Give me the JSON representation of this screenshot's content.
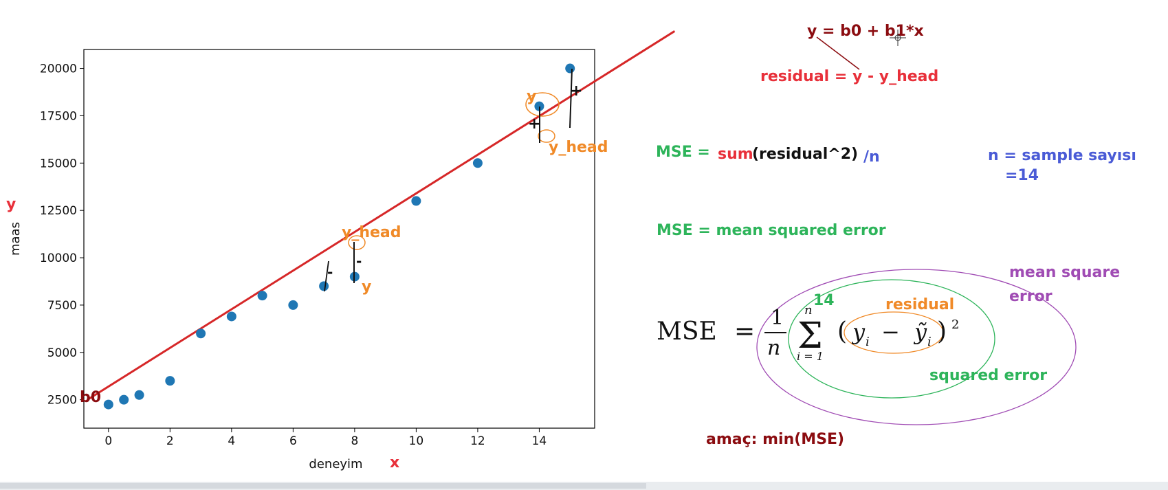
{
  "chart_data": {
    "type": "scatter",
    "x": [
      0,
      0.5,
      1,
      2,
      3,
      4,
      5,
      6,
      7,
      8,
      10,
      12,
      14,
      15
    ],
    "y": [
      2250,
      2500,
      2750,
      3500,
      6000,
      6900,
      8000,
      7500,
      8500,
      9000,
      13000,
      15000,
      18000,
      20000
    ],
    "fit_line": {
      "intercept": 3200,
      "slope": 1020,
      "color": "#d62728"
    },
    "point_color": "#1f77b4",
    "xlabel": "deneyim",
    "ylabel": "maas",
    "xlim": [
      -0.8,
      15.8
    ],
    "ylim": [
      1000,
      21000
    ],
    "xticks": [
      0,
      2,
      4,
      6,
      8,
      10,
      12,
      14
    ],
    "yticks": [
      2500,
      5000,
      7500,
      10000,
      12500,
      15000,
      17500,
      20000
    ],
    "xtick_labels": [
      "0",
      "2",
      "4",
      "6",
      "8",
      "10",
      "12",
      "14"
    ],
    "ytick_labels": [
      "2500",
      "5000",
      "7500",
      "10000",
      "12500",
      "15000",
      "17500",
      "20000"
    ],
    "grid": false
  },
  "annotations": {
    "axis_y_letter": "y",
    "axis_x_letter": "x",
    "b0": "b0",
    "y_label_1": "y",
    "y_label_2": "y",
    "y_head_1": "y_head",
    "y_head_2": "y_head",
    "plus": "+",
    "minus": "-",
    "equation": "y = b0 + b1*x",
    "residual_def": "residual = y - y_head",
    "mse_label": "MSE =",
    "mse_sum": "sum",
    "mse_inner": "(residual^2)",
    "mse_div": "/n",
    "n_def": "n = sample sayısı",
    "n_val": "=14",
    "mse_meaning": "MSE = mean squared error",
    "formula_mse": "MSE",
    "formula_equals": "=",
    "formula_one": "1",
    "formula_n": "n",
    "formula_sigma": "Σ",
    "formula_upper": "n",
    "formula_lower": "i = 1",
    "formula_y_i": "y",
    "formula_yhat_i": "ỹ",
    "formula_sub": "i",
    "formula_minus": "−",
    "formula_square": "2",
    "fourteen": "14",
    "residual_word": "residual",
    "squared_error": "squared error",
    "mean_square": "mean square",
    "error": "error",
    "goal": "amaç: min(MSE)"
  },
  "colors": {
    "dark_red": "#8b0c10",
    "red": "#e8303a",
    "orange": "#f08a28",
    "green": "#2db45a",
    "blue": "#4a5bd6",
    "purple": "#a04cb4",
    "black": "#111111"
  }
}
